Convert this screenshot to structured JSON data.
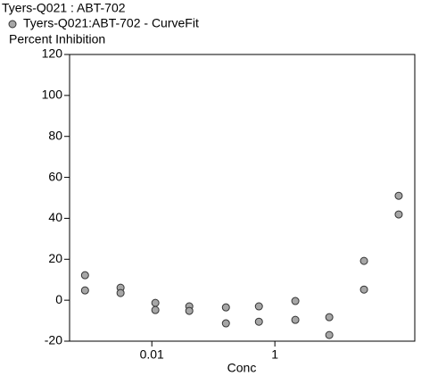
{
  "chart_data": {
    "type": "scatter",
    "title": "Tyers-Q021  : ABT-702",
    "ylabel": "Percent Inhibition",
    "xlabel": "Conc",
    "series": [
      {
        "name": "Tyers-Q021:ABT-702 - CurveFit",
        "color": "#a6a6a6",
        "x": [
          0.00082,
          0.00082,
          0.0031,
          0.0031,
          0.0114,
          0.0114,
          0.0406,
          0.0406,
          0.16,
          0.16,
          0.55,
          0.55,
          2.15,
          2.15,
          7.66,
          7.66,
          28.1,
          28.1,
          103,
          103
        ],
        "values": [
          12.2,
          4.8,
          6.1,
          3.5,
          -1.3,
          -4.8,
          -3,
          -5.2,
          -3.5,
          -11.3,
          -3,
          -10.5,
          -0.4,
          -9.6,
          -8.3,
          -17,
          19.2,
          5.2,
          51,
          41.9
        ]
      }
    ],
    "xscale": "log",
    "xlim": [
      0.00046,
      188
    ],
    "xticks": [
      0.01,
      1
    ],
    "ylim": [
      -20,
      120
    ],
    "yticks": [
      -20,
      0,
      20,
      40,
      60,
      80,
      100,
      120
    ]
  }
}
